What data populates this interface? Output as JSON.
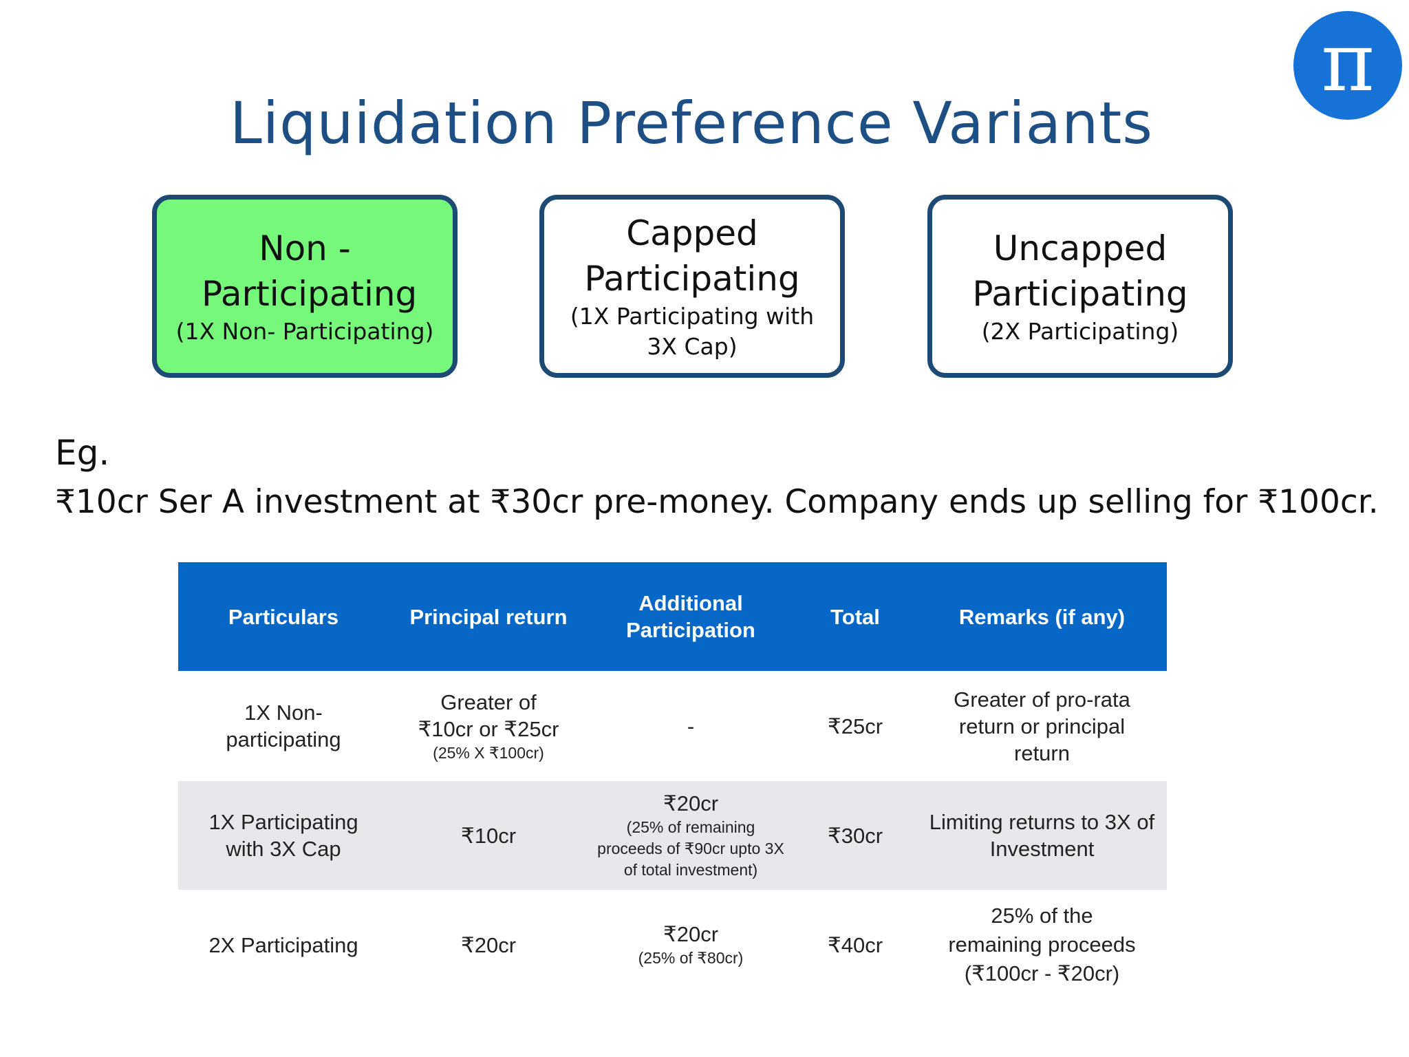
{
  "logo": {
    "symbol": "π",
    "color": "#1672d6"
  },
  "title": "Liquidation Preference Variants",
  "variants": [
    {
      "name": "Non - Participating",
      "sub": "(1X Non- Participating)",
      "highlighted": true
    },
    {
      "name": "Capped Participating",
      "sub": "(1X Participating with 3X Cap)",
      "highlighted": false
    },
    {
      "name": "Uncapped Participating",
      "sub": "(2X Participating)",
      "highlighted": false
    }
  ],
  "example": {
    "label": "Eg.",
    "text": "₹10cr Ser A investment at ₹30cr pre-money. Company ends up selling for ₹100cr."
  },
  "table": {
    "headers": [
      "Particulars",
      "Principal return",
      "Additional Participation",
      "Total",
      "Remarks (if any)"
    ],
    "rows": [
      {
        "particulars": "1X Non-participating",
        "principal_main": "Greater of ₹10cr or ₹25cr",
        "principal_note": "(25% X ₹100cr)",
        "additional_main": "-",
        "additional_note": "",
        "total": "₹25cr",
        "remarks": "Greater of pro-rata return or principal return"
      },
      {
        "particulars": "1X Participating with 3X Cap",
        "principal_main": "₹10cr",
        "principal_note": "",
        "additional_main": "₹20cr",
        "additional_note": "(25% of remaining proceeds of ₹90cr upto 3X of total investment)",
        "total": "₹30cr",
        "remarks": "Limiting returns to 3X of Investment"
      },
      {
        "particulars": "2X Participating",
        "principal_main": "₹20cr",
        "principal_note": "",
        "additional_main": "₹20cr",
        "additional_note": "(25% of ₹80cr)",
        "total": "₹40cr",
        "remarks": "25% of the remaining proceeds (₹100cr - ₹20cr)"
      }
    ]
  },
  "colors": {
    "title": "#1d4f85",
    "header_bg": "#0767c7",
    "highlight": "#76f87a",
    "border": "#1c4a74",
    "alt_row": "#e8e8ec"
  }
}
